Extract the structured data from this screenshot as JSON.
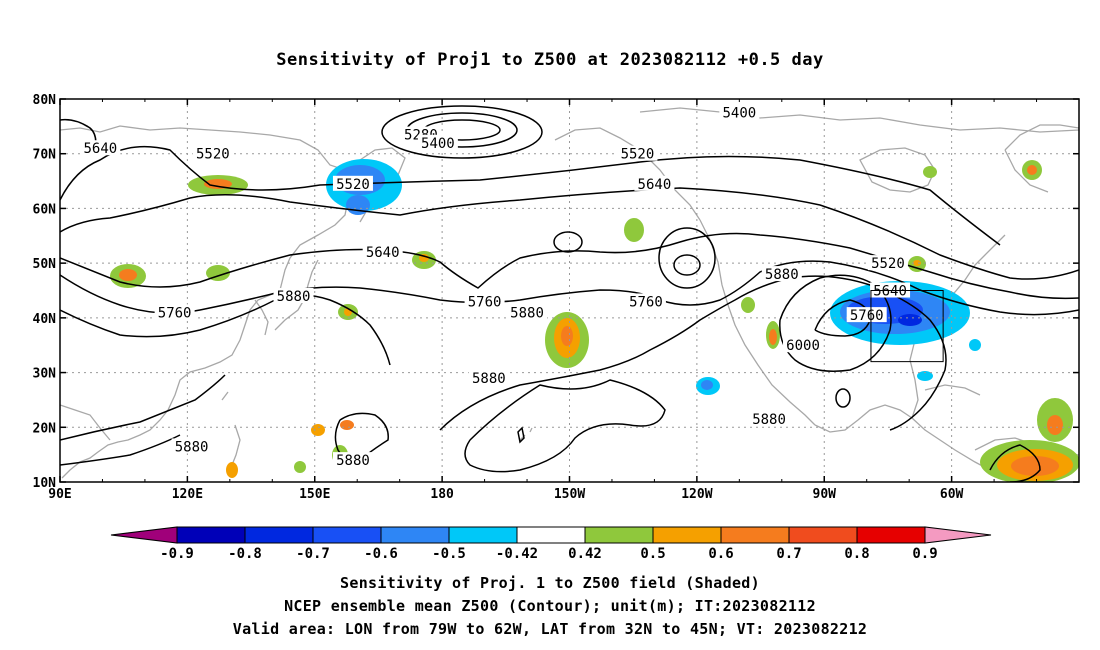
{
  "title": "Sensitivity of Proj1 to Z500 at 2023082112 +0.5 day",
  "lat_ticks": [
    "80N",
    "70N",
    "60N",
    "50N",
    "40N",
    "30N",
    "20N",
    "10N"
  ],
  "lon_ticks": [
    "90E",
    "120E",
    "150E",
    "180",
    "150W",
    "120W",
    "90W",
    "60W"
  ],
  "contour_labels": [
    {
      "text": "5280",
      "lon": 175,
      "lat": 73.5
    },
    {
      "text": "5400",
      "lon": 179,
      "lat": 72
    },
    {
      "text": "5400",
      "lon": 250,
      "lat": 77.5
    },
    {
      "text": "5520",
      "lon": 126,
      "lat": 70
    },
    {
      "text": "5520",
      "lon": 159,
      "lat": 64.5
    },
    {
      "text": "5520",
      "lon": 226,
      "lat": 70
    },
    {
      "text": "5520",
      "lon": 285,
      "lat": 50
    },
    {
      "text": "5640",
      "lon": 99.5,
      "lat": 71
    },
    {
      "text": "5640",
      "lon": 166,
      "lat": 52
    },
    {
      "text": "5640",
      "lon": 230,
      "lat": 64.5
    },
    {
      "text": "5640",
      "lon": 285.5,
      "lat": 45
    },
    {
      "text": "5760",
      "lon": 117,
      "lat": 41
    },
    {
      "text": "5760",
      "lon": 190,
      "lat": 43
    },
    {
      "text": "5760",
      "lon": 228,
      "lat": 43
    },
    {
      "text": "5760",
      "lon": 280,
      "lat": 40.5
    },
    {
      "text": "5880",
      "lon": 145,
      "lat": 44
    },
    {
      "text": "5880",
      "lon": 200,
      "lat": 41
    },
    {
      "text": "5880",
      "lon": 191,
      "lat": 29
    },
    {
      "text": "5880",
      "lon": 260,
      "lat": 48
    },
    {
      "text": "5880",
      "lon": 121,
      "lat": 16.5
    },
    {
      "text": "5880",
      "lon": 159,
      "lat": 14
    },
    {
      "text": "5880",
      "lon": 257,
      "lat": 21.5
    },
    {
      "text": "6000",
      "lon": 265,
      "lat": 35
    }
  ],
  "colorbar": {
    "boundaries": [
      "-0.9",
      "-0.8",
      "-0.7",
      "-0.6",
      "-0.5",
      "-0.42",
      "0.42",
      "0.5",
      "0.6",
      "0.7",
      "0.8",
      "0.9"
    ],
    "colors": [
      "#a0007a",
      "#0000b8",
      "#0028e0",
      "#1850f5",
      "#2e86f5",
      "#00c8f8",
      "#ffffff",
      "#8fc83c",
      "#f5a000",
      "#f57c1e",
      "#f04c1e",
      "#e60000",
      "#f49ac1"
    ]
  },
  "footer": {
    "line1": "Sensitivity of Proj. 1 to Z500 field (Shaded)",
    "line2": "NCEP ensemble mean Z500 (Contour); unit(m); IT:2023082112",
    "line3": "Valid area: LON from 79W to 62W, LAT from 32N to 45N; VT: 2023082212"
  }
}
